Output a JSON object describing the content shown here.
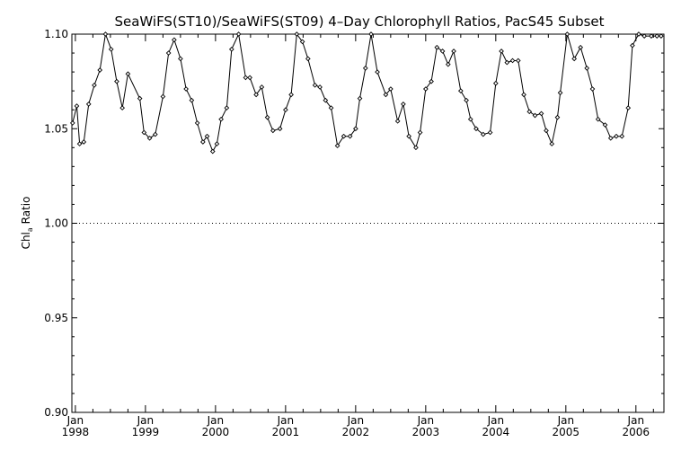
{
  "chart_data": {
    "type": "line",
    "title": "SeaWiFS(ST10)/SeaWiFS(ST09) 4–Day Chlorophyll Ratios, PacS45 Subset",
    "ylabel_main": "Chl",
    "ylabel_sub": "a",
    "ylabel_rest": " Ratio",
    "xlim": [
      1997.95,
      2006.4
    ],
    "ylim": [
      0.9,
      1.1
    ],
    "yticks": [
      {
        "value": 0.9,
        "label": "0.90"
      },
      {
        "value": 0.95,
        "label": "0.95"
      },
      {
        "value": 1.0,
        "label": "1.00"
      },
      {
        "value": 1.05,
        "label": "1.05"
      },
      {
        "value": 1.1,
        "label": "1.10"
      }
    ],
    "xticks": [
      {
        "value": 1998,
        "month": "Jan",
        "year": "1998"
      },
      {
        "value": 1999,
        "month": "Jan",
        "year": "1999"
      },
      {
        "value": 2000,
        "month": "Jan",
        "year": "2000"
      },
      {
        "value": 2001,
        "month": "Jan",
        "year": "2001"
      },
      {
        "value": 2002,
        "month": "Jan",
        "year": "2002"
      },
      {
        "value": 2003,
        "month": "Jan",
        "year": "2003"
      },
      {
        "value": 2004,
        "month": "Jan",
        "year": "2004"
      },
      {
        "value": 2005,
        "month": "Jan",
        "year": "2005"
      },
      {
        "value": 2006,
        "month": "Jan",
        "year": "2006"
      }
    ],
    "reference_line": 1.0,
    "series": [
      {
        "x": [
          1997.96,
          1998.02,
          1998.06,
          1998.12,
          1998.19,
          1998.27,
          1998.35,
          1998.43,
          1998.51,
          1998.59,
          1998.67,
          1998.75,
          1998.92,
          1998.98,
          1999.06,
          1999.14,
          1999.25,
          1999.33,
          1999.41,
          1999.5,
          1999.58,
          1999.66,
          1999.74,
          1999.82,
          1999.88,
          1999.96,
          2000.02,
          2000.08,
          2000.16,
          2000.23,
          2000.33,
          2000.43,
          2000.49,
          2000.58,
          2000.66,
          2000.74,
          2000.82,
          2000.92,
          2001.0,
          2001.08,
          2001.16,
          2001.24,
          2001.32,
          2001.42,
          2001.49,
          2001.57,
          2001.65,
          2001.74,
          2001.83,
          2001.92,
          2002.0,
          2002.06,
          2002.14,
          2002.22,
          2002.31,
          2002.43,
          2002.5,
          2002.6,
          2002.68,
          2002.76,
          2002.86,
          2002.92,
          2003.0,
          2003.08,
          2003.16,
          2003.24,
          2003.32,
          2003.4,
          2003.5,
          2003.58,
          2003.64,
          2003.72,
          2003.82,
          2003.92,
          2004.0,
          2004.08,
          2004.16,
          2004.24,
          2004.32,
          2004.4,
          2004.48,
          2004.56,
          2004.65,
          2004.72,
          2004.8,
          2004.88,
          2004.92,
          2005.02,
          2005.12,
          2005.21,
          2005.3,
          2005.38,
          2005.46,
          2005.56,
          2005.64,
          2005.72,
          2005.8,
          2005.89,
          2005.95,
          2006.04,
          2006.12,
          2006.22,
          2006.3,
          2006.36
        ],
        "y": [
          1.053,
          1.062,
          1.042,
          1.043,
          1.063,
          1.073,
          1.081,
          1.1,
          1.092,
          1.075,
          1.061,
          1.079,
          1.066,
          1.048,
          1.045,
          1.047,
          1.067,
          1.09,
          1.097,
          1.087,
          1.071,
          1.065,
          1.053,
          1.043,
          1.046,
          1.038,
          1.042,
          1.055,
          1.061,
          1.092,
          1.104,
          1.077,
          1.077,
          1.068,
          1.072,
          1.056,
          1.049,
          1.05,
          1.06,
          1.068,
          1.101,
          1.096,
          1.087,
          1.073,
          1.072,
          1.065,
          1.061,
          1.041,
          1.046,
          1.046,
          1.05,
          1.066,
          1.082,
          1.102,
          1.08,
          1.068,
          1.071,
          1.054,
          1.063,
          1.046,
          1.04,
          1.048,
          1.071,
          1.075,
          1.093,
          1.091,
          1.084,
          1.091,
          1.07,
          1.065,
          1.055,
          1.05,
          1.047,
          1.048,
          1.074,
          1.091,
          1.085,
          1.086,
          1.086,
          1.068,
          1.059,
          1.057,
          1.058,
          1.049,
          1.042,
          1.056,
          1.069,
          1.104,
          1.087,
          1.093,
          1.082,
          1.071,
          1.055,
          1.052,
          1.045,
          1.046,
          1.046,
          1.061,
          1.094,
          1.104,
          1.099,
          1.099,
          1.099,
          1.099
        ]
      }
    ]
  }
}
